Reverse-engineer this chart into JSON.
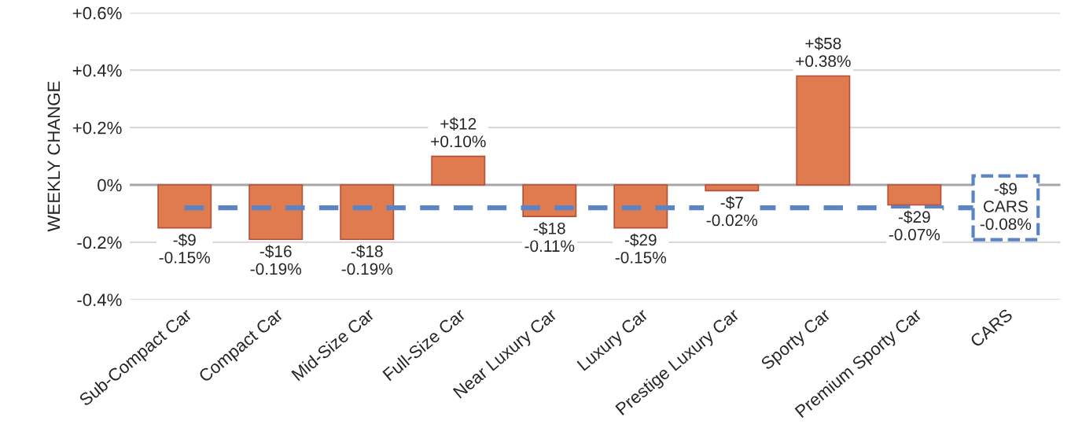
{
  "chart_data": {
    "type": "bar",
    "ylabel": "WEEKLY CHANGE",
    "categories": [
      "Sub-Compact Car",
      "Compact Car",
      "Mid-Size Car",
      "Full-Size Car",
      "Near Luxury Car",
      "Luxury Car",
      "Prestige Luxury Car",
      "Sporty Car",
      "Premium Sporty Car",
      "CARS"
    ],
    "values": [
      -0.15,
      -0.19,
      -0.19,
      0.1,
      -0.11,
      -0.15,
      -0.02,
      0.38,
      -0.07,
      null
    ],
    "value_labels": [
      "-$9\n-0.15%",
      "-$16\n-0.19%",
      "-$18\n-0.19%",
      "+$12\n+0.10%",
      "-$18\n-0.11%",
      "-$29\n-0.15%",
      "-$7\n-0.02%",
      "+$58\n+0.38%",
      "-$29\n-0.07%",
      null
    ],
    "color": "#e07b50",
    "ylim": [
      -0.4,
      0.6
    ],
    "yticks": [
      {
        "value": -0.4,
        "label": "-0.4%"
      },
      {
        "value": -0.2,
        "label": "-0.2%"
      },
      {
        "value": 0,
        "label": "0%"
      },
      {
        "value": 0.2,
        "label": "+0.2%"
      },
      {
        "value": 0.4,
        "label": "+0.4%"
      },
      {
        "value": 0.6,
        "label": "+0.6%"
      }
    ],
    "grid": "y",
    "ref_lines": [
      {
        "axis": "y",
        "value": -0.08,
        "label": "-$9\nCARS\n-0.08%",
        "color": "#5b84c4",
        "line_style": "dashed"
      }
    ]
  }
}
